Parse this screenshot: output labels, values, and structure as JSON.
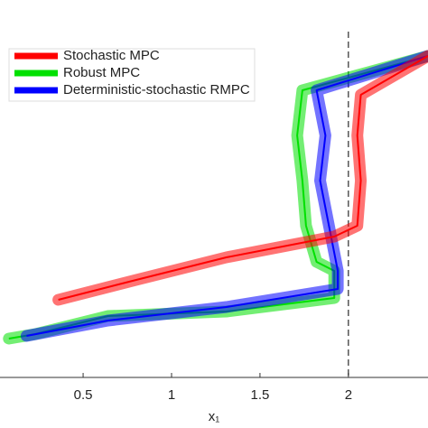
{
  "chart_data": {
    "type": "line",
    "xlabel": "x₁",
    "xlim": [
      0.03,
      2.45
    ],
    "ylim": [
      0,
      4.18
    ],
    "xticks": [
      0.5,
      1,
      1.5,
      2
    ],
    "vline": 2,
    "legend": "upper left",
    "series": [
      {
        "name": "Stochastic MPC",
        "color": "#ff0000",
        "x": [
          2.45,
          2.07,
          2.05,
          2.07,
          2.05,
          1.92,
          1.31,
          0.8,
          0.36
        ],
        "values": [
          3.56,
          3.13,
          2.68,
          2.18,
          1.68,
          1.56,
          1.33,
          1.08,
          0.86
        ]
      },
      {
        "name": "Robust MPC",
        "color": "#00e000",
        "x": [
          2.45,
          1.74,
          1.71,
          1.74,
          1.76,
          1.82,
          1.92,
          1.92,
          1.31,
          0.64,
          0.23,
          0.08
        ],
        "values": [
          3.56,
          3.18,
          2.68,
          2.18,
          1.68,
          1.28,
          1.18,
          0.88,
          0.73,
          0.68,
          0.48,
          0.43
        ]
      },
      {
        "name": "Deterministic-stochastic RMPC",
        "color": "#0000ff",
        "x": [
          2.45,
          1.82,
          1.87,
          1.84,
          1.89,
          1.94,
          1.94,
          1.31,
          0.64,
          0.18
        ],
        "values": [
          3.56,
          3.18,
          2.68,
          2.18,
          1.68,
          1.18,
          0.98,
          0.78,
          0.63,
          0.46
        ]
      }
    ]
  }
}
